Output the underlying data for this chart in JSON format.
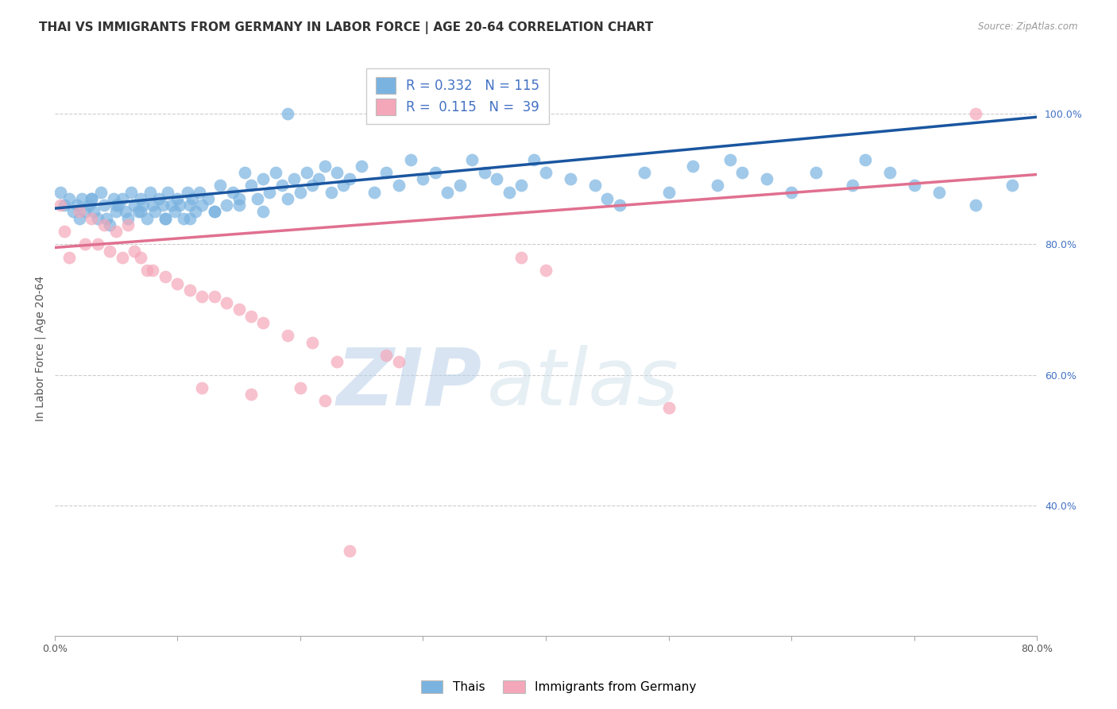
{
  "title": "THAI VS IMMIGRANTS FROM GERMANY IN LABOR FORCE | AGE 20-64 CORRELATION CHART",
  "source": "Source: ZipAtlas.com",
  "ylabel": "In Labor Force | Age 20-64",
  "y_ticks_right": [
    0.4,
    0.6,
    0.8,
    1.0
  ],
  "y_tick_labels_right": [
    "40.0%",
    "60.0%",
    "80.0%",
    "100.0%"
  ],
  "xlim": [
    0.0,
    0.8
  ],
  "ylim": [
    0.2,
    1.08
  ],
  "blue_color": "#7ab3e0",
  "pink_color": "#f4a7b9",
  "blue_line_color": "#1a56a0",
  "pink_line_color": "#e07090",
  "legend_blue_label_r": "R = 0.332",
  "legend_blue_label_n": "N = 115",
  "legend_pink_label_r": "R =  0.115",
  "legend_pink_label_n": "N =  39",
  "legend_label_thais": "Thais",
  "legend_label_immigrants": "Immigrants from Germany",
  "watermark_zip": "ZIP",
  "watermark_atlas": "atlas",
  "title_fontsize": 11,
  "axis_label_fontsize": 10,
  "tick_fontsize": 9,
  "blue_intercept": 0.855,
  "blue_slope": 0.175,
  "pink_intercept": 0.795,
  "pink_slope": 0.14,
  "blue_x": [
    0.005,
    0.008,
    0.012,
    0.015,
    0.018,
    0.02,
    0.022,
    0.025,
    0.028,
    0.03,
    0.032,
    0.035,
    0.038,
    0.04,
    0.042,
    0.045,
    0.048,
    0.05,
    0.052,
    0.055,
    0.058,
    0.06,
    0.062,
    0.065,
    0.068,
    0.07,
    0.072,
    0.075,
    0.078,
    0.08,
    0.082,
    0.085,
    0.088,
    0.09,
    0.092,
    0.095,
    0.098,
    0.1,
    0.102,
    0.105,
    0.108,
    0.11,
    0.112,
    0.115,
    0.118,
    0.12,
    0.125,
    0.13,
    0.135,
    0.14,
    0.145,
    0.15,
    0.155,
    0.16,
    0.165,
    0.17,
    0.175,
    0.18,
    0.185,
    0.19,
    0.195,
    0.2,
    0.205,
    0.21,
    0.215,
    0.22,
    0.225,
    0.23,
    0.235,
    0.24,
    0.25,
    0.26,
    0.27,
    0.28,
    0.29,
    0.3,
    0.31,
    0.32,
    0.33,
    0.34,
    0.35,
    0.36,
    0.37,
    0.38,
    0.39,
    0.4,
    0.42,
    0.44,
    0.45,
    0.46,
    0.48,
    0.5,
    0.52,
    0.54,
    0.55,
    0.56,
    0.58,
    0.6,
    0.62,
    0.65,
    0.66,
    0.68,
    0.7,
    0.72,
    0.75,
    0.78,
    0.03,
    0.05,
    0.07,
    0.09,
    0.11,
    0.13,
    0.15,
    0.17,
    0.19
  ],
  "blue_y": [
    0.88,
    0.86,
    0.87,
    0.85,
    0.86,
    0.84,
    0.87,
    0.85,
    0.86,
    0.87,
    0.85,
    0.84,
    0.88,
    0.86,
    0.84,
    0.83,
    0.87,
    0.85,
    0.86,
    0.87,
    0.85,
    0.84,
    0.88,
    0.86,
    0.85,
    0.87,
    0.86,
    0.84,
    0.88,
    0.86,
    0.85,
    0.87,
    0.86,
    0.84,
    0.88,
    0.86,
    0.85,
    0.87,
    0.86,
    0.84,
    0.88,
    0.86,
    0.87,
    0.85,
    0.88,
    0.86,
    0.87,
    0.85,
    0.89,
    0.86,
    0.88,
    0.87,
    0.91,
    0.89,
    0.87,
    0.9,
    0.88,
    0.91,
    0.89,
    0.87,
    0.9,
    0.88,
    0.91,
    0.89,
    0.9,
    0.92,
    0.88,
    0.91,
    0.89,
    0.9,
    0.92,
    0.88,
    0.91,
    0.89,
    0.93,
    0.9,
    0.91,
    0.88,
    0.89,
    0.93,
    0.91,
    0.9,
    0.88,
    0.89,
    0.93,
    0.91,
    0.9,
    0.89,
    0.87,
    0.86,
    0.91,
    0.88,
    0.92,
    0.89,
    0.93,
    0.91,
    0.9,
    0.88,
    0.91,
    0.89,
    0.93,
    0.91,
    0.89,
    0.88,
    0.86,
    0.89,
    0.87,
    0.86,
    0.85,
    0.84,
    0.84,
    0.85,
    0.86,
    0.85,
    1.0
  ],
  "pink_x": [
    0.005,
    0.008,
    0.012,
    0.02,
    0.025,
    0.03,
    0.035,
    0.04,
    0.045,
    0.05,
    0.055,
    0.06,
    0.065,
    0.07,
    0.075,
    0.08,
    0.09,
    0.1,
    0.11,
    0.12,
    0.13,
    0.14,
    0.15,
    0.16,
    0.17,
    0.19,
    0.21,
    0.23,
    0.27,
    0.28,
    0.38,
    0.4,
    0.5,
    0.75,
    0.12,
    0.16,
    0.2,
    0.22,
    0.24
  ],
  "pink_y": [
    0.86,
    0.82,
    0.78,
    0.85,
    0.8,
    0.84,
    0.8,
    0.83,
    0.79,
    0.82,
    0.78,
    0.83,
    0.79,
    0.78,
    0.76,
    0.76,
    0.75,
    0.74,
    0.73,
    0.72,
    0.72,
    0.71,
    0.7,
    0.69,
    0.68,
    0.66,
    0.65,
    0.62,
    0.63,
    0.62,
    0.78,
    0.76,
    0.55,
    1.0,
    0.58,
    0.57,
    0.58,
    0.56,
    0.33
  ]
}
